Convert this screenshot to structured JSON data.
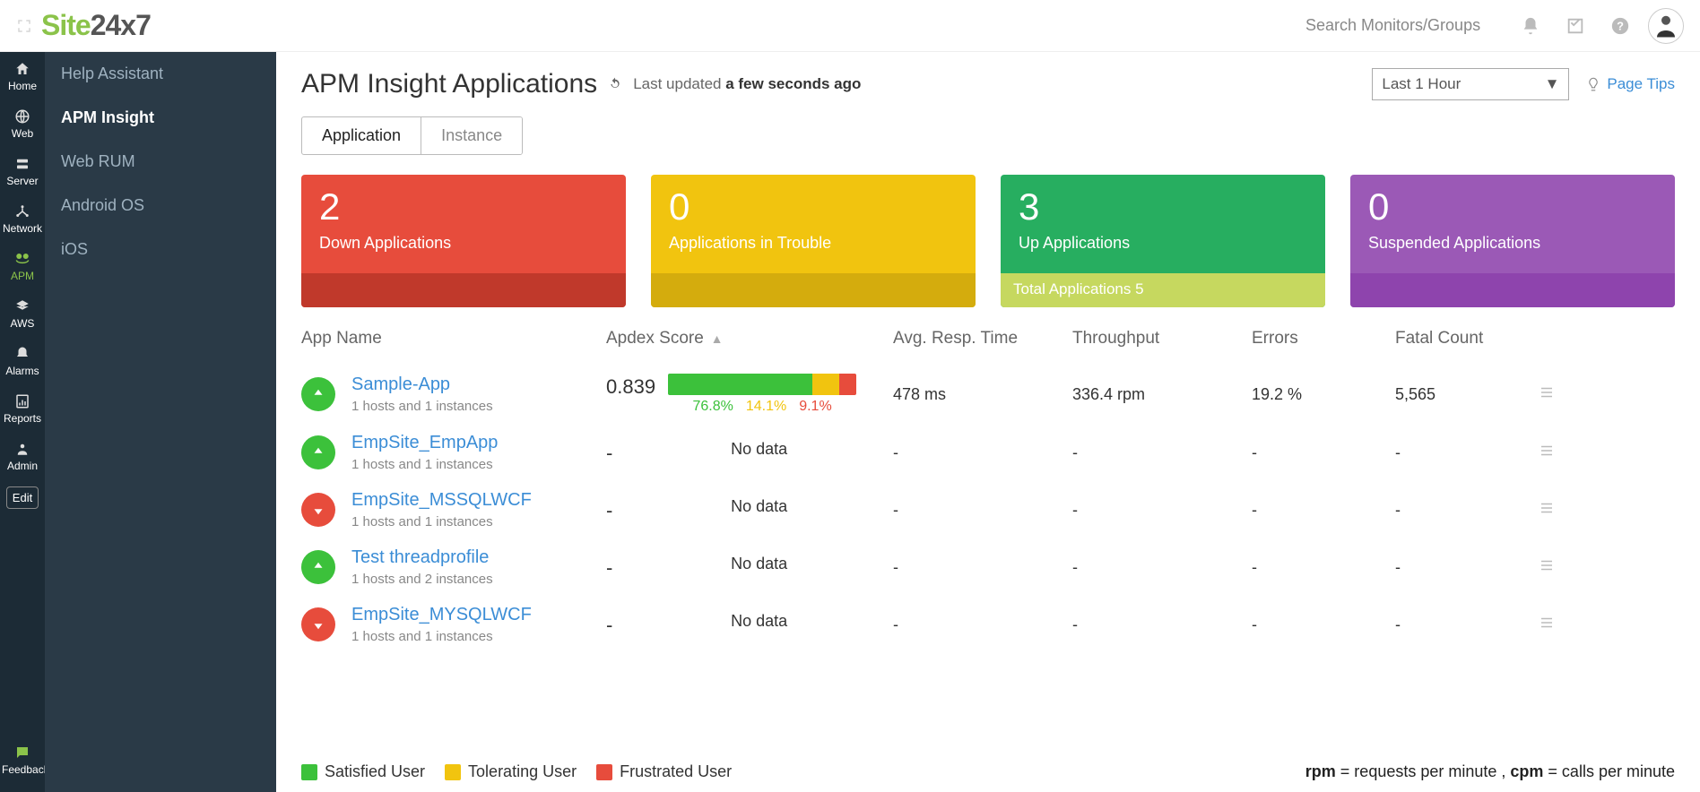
{
  "brand": {
    "green": "Site",
    "rest": "24x7"
  },
  "search_placeholder": "Search Monitors/Groups",
  "rail": [
    {
      "id": "home",
      "label": "Home"
    },
    {
      "id": "web",
      "label": "Web"
    },
    {
      "id": "server",
      "label": "Server"
    },
    {
      "id": "network",
      "label": "Network"
    },
    {
      "id": "apm",
      "label": "APM",
      "active": true
    },
    {
      "id": "aws",
      "label": "AWS"
    },
    {
      "id": "alarms",
      "label": "Alarms"
    },
    {
      "id": "reports",
      "label": "Reports"
    },
    {
      "id": "admin",
      "label": "Admin"
    }
  ],
  "rail_edit": "Edit",
  "rail_feedback": "Feedback",
  "subside": [
    {
      "label": "Help Assistant"
    },
    {
      "label": "APM Insight",
      "active": true
    },
    {
      "label": "Web RUM"
    },
    {
      "label": "Android OS"
    },
    {
      "label": "iOS"
    }
  ],
  "page_title": "APM Insight Applications",
  "updated_prefix": "Last updated ",
  "updated_value": "a few seconds ago",
  "time_range": "Last 1 Hour",
  "page_tips": "Page Tips",
  "tabs": [
    {
      "label": "Application",
      "active": true
    },
    {
      "label": "Instance"
    }
  ],
  "cards": [
    {
      "count": "2",
      "label": "Down Applications",
      "cls": "red"
    },
    {
      "count": "0",
      "label": "Applications in Trouble",
      "cls": "amber"
    },
    {
      "count": "3",
      "label": "Up Applications",
      "cls": "green",
      "footer": "Total Applications 5"
    },
    {
      "count": "0",
      "label": "Suspended Applications",
      "cls": "purple"
    }
  ],
  "columns": [
    "App Name",
    "Apdex Score",
    "Avg. Resp. Time",
    "Throughput",
    "Errors",
    "Fatal Count"
  ],
  "rows": [
    {
      "status": "up",
      "name": "Sample-App",
      "sub": "1 hosts and 1 instances",
      "apdex": "0.839",
      "satisfied": 76.8,
      "tolerating": 14.1,
      "frustrated": 9.1,
      "sat_pct": "76.8%",
      "tol_pct": "14.1%",
      "fru_pct": "9.1%",
      "resp": "478 ms",
      "tput": "336.4 rpm",
      "errors": "19.2 %",
      "fatal": "5,565"
    },
    {
      "status": "up",
      "name": "EmpSite_EmpApp",
      "sub": "1 hosts and 1 instances",
      "apdex": "-",
      "nodata": "No data",
      "resp": "-",
      "tput": "-",
      "errors": "-",
      "fatal": "-"
    },
    {
      "status": "down",
      "name": "EmpSite_MSSQLWCF",
      "sub": "1 hosts and 1 instances",
      "apdex": "-",
      "nodata": "No data",
      "resp": "-",
      "tput": "-",
      "errors": "-",
      "fatal": "-"
    },
    {
      "status": "up",
      "name": "Test threadprofile",
      "sub": "1 hosts and 2 instances",
      "apdex": "-",
      "nodata": "No data",
      "resp": "-",
      "tput": "-",
      "errors": "-",
      "fatal": "-"
    },
    {
      "status": "down",
      "name": "EmpSite_MYSQLWCF",
      "sub": "1 hosts and 1 instances",
      "apdex": "-",
      "nodata": "No data",
      "resp": "-",
      "tput": "-",
      "errors": "-",
      "fatal": "-"
    }
  ],
  "legend": {
    "satisfied": "Satisfied User",
    "tolerating": "Tolerating User",
    "frustrated": "Frustrated User",
    "note_rpm_label": "rpm",
    "note_rpm": " = requests per minute , ",
    "note_cpm_label": "cpm",
    "note_cpm": " = calls per minute"
  },
  "colors": {
    "satisfied": "#3cc13b",
    "tolerating": "#f1c40f",
    "frustrated": "#e74c3c",
    "link": "#3b8dd6"
  }
}
